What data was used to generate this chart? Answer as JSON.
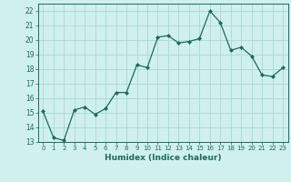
{
  "x": [
    0,
    1,
    2,
    3,
    4,
    5,
    6,
    7,
    8,
    9,
    10,
    11,
    12,
    13,
    14,
    15,
    16,
    17,
    18,
    19,
    20,
    21,
    22,
    23
  ],
  "y": [
    15.1,
    13.3,
    13.1,
    15.2,
    15.4,
    14.9,
    15.3,
    16.4,
    16.4,
    18.3,
    18.1,
    20.2,
    20.3,
    19.8,
    19.9,
    20.1,
    22.0,
    21.2,
    19.3,
    19.5,
    18.9,
    17.6,
    17.5,
    18.1
  ],
  "line_color": "#1a6b5a",
  "marker": "D",
  "marker_size": 2.0,
  "bg_color": "#cff0ee",
  "grid_color": "#aad8d3",
  "xlabel": "Humidex (Indice chaleur)",
  "ylabel_ticks": [
    13,
    14,
    15,
    16,
    17,
    18,
    19,
    20,
    21,
    22
  ],
  "xlim": [
    -0.5,
    23.5
  ],
  "ylim": [
    13,
    22.5
  ],
  "xtick_fontsize": 5.0,
  "ytick_fontsize": 5.5,
  "xlabel_fontsize": 6.5
}
